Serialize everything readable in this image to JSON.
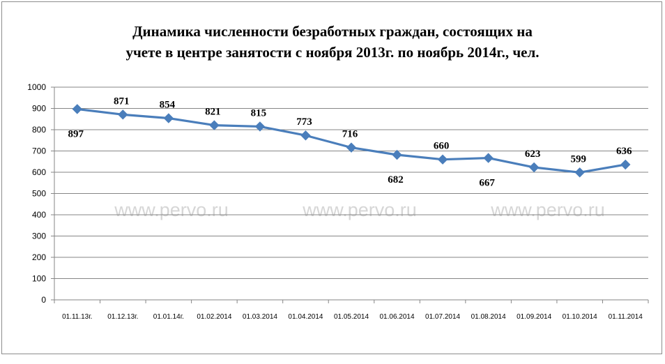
{
  "chart_data": {
    "type": "line",
    "title_lines": [
      "Динамика численности безработных граждан, состоящих на",
      "учете в центре  занятости с ноября 2013г. по ноябрь 2014г., чел."
    ],
    "categories": [
      "01.11.13г.",
      "01.12.13г.",
      "01.01.14г.",
      "01.02.2014",
      "01.03.2014",
      "01.04.2014",
      "01.05.2014",
      "01.06.2014",
      "01.07.2014",
      "01.08.2014",
      "01.09.2014",
      "01.10.2014",
      "01.11.2014"
    ],
    "series": [
      {
        "values": [
          897,
          871,
          854,
          821,
          815,
          773,
          716,
          682,
          660,
          667,
          623,
          599,
          636
        ],
        "color": "#4a7ebb"
      }
    ],
    "label_placement": [
      "below",
      "above",
      "above",
      "above",
      "above",
      "above",
      "above",
      "below",
      "above",
      "below",
      "above",
      "above",
      "above"
    ],
    "ylim": [
      0,
      1000
    ],
    "yticks": [
      0,
      100,
      200,
      300,
      400,
      500,
      600,
      700,
      800,
      900,
      1000
    ],
    "grid": true,
    "legend": "none",
    "watermarks": [
      "www.pervo.ru",
      "www.pervo.ru",
      "www.pervo.ru"
    ],
    "colors": {
      "gridline": "#868686",
      "axis": "#868686",
      "line": "#4a7ebb",
      "watermark": "#d6d6d6"
    }
  }
}
